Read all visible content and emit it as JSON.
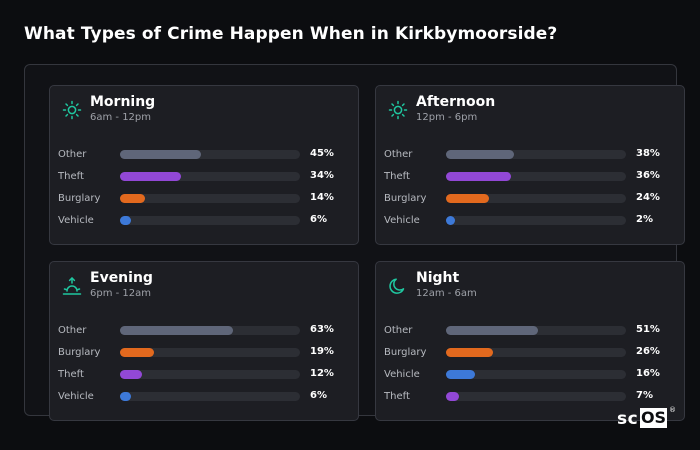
{
  "title": "What Types of Crime Happen When in Kirkbymoorside?",
  "colors": {
    "Other": "#5f6679",
    "Theft": "#9248d6",
    "Burglary": "#e2691e",
    "Vehicle": "#3d79d8",
    "icon": "#1fc7a0"
  },
  "chart_data": [
    {
      "type": "bar",
      "title": "Morning",
      "subtitle": "6am - 12pm",
      "icon": "sun-icon",
      "categories": [
        "Other",
        "Theft",
        "Burglary",
        "Vehicle"
      ],
      "values": [
        45,
        34,
        14,
        6
      ],
      "labels": [
        "45%",
        "34%",
        "14%",
        "6%"
      ],
      "xlim": [
        0,
        100
      ]
    },
    {
      "type": "bar",
      "title": "Afternoon",
      "subtitle": "12pm - 6pm",
      "icon": "sun-icon",
      "categories": [
        "Other",
        "Theft",
        "Burglary",
        "Vehicle"
      ],
      "values": [
        38,
        36,
        24,
        2
      ],
      "labels": [
        "38%",
        "36%",
        "24%",
        "2%"
      ],
      "xlim": [
        0,
        100
      ]
    },
    {
      "type": "bar",
      "title": "Evening",
      "subtitle": "6pm - 12am",
      "icon": "sunset-icon",
      "categories": [
        "Other",
        "Burglary",
        "Theft",
        "Vehicle"
      ],
      "values": [
        63,
        19,
        12,
        6
      ],
      "labels": [
        "63%",
        "19%",
        "12%",
        "6%"
      ],
      "xlim": [
        0,
        100
      ]
    },
    {
      "type": "bar",
      "title": "Night",
      "subtitle": "12am - 6am",
      "icon": "moon-icon",
      "categories": [
        "Other",
        "Burglary",
        "Vehicle",
        "Theft"
      ],
      "values": [
        51,
        26,
        16,
        7
      ],
      "labels": [
        "51%",
        "26%",
        "16%",
        "7%"
      ],
      "xlim": [
        0,
        100
      ]
    }
  ],
  "watermark": {
    "prefix": "sc",
    "boxed": "OS",
    "mark": "®"
  }
}
